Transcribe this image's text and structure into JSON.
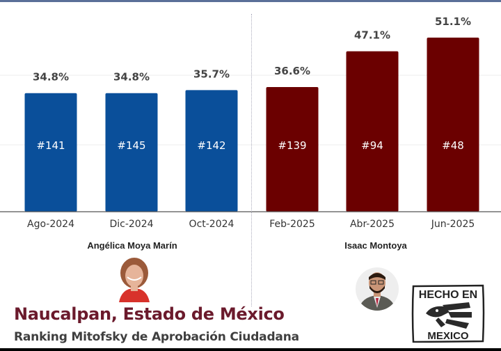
{
  "chart_data": {
    "type": "bar",
    "title": "Naucalpan, Estado de México",
    "subtitle": "Ranking Mitofsky de Aprobación Ciudadana",
    "xlabel": "",
    "ylabel": "",
    "ylim": [
      0,
      55
    ],
    "grid": true,
    "categories": [
      "Ago-2024",
      "Dic-2024",
      "Oct-2024",
      "Feb-2025",
      "Abr-2025",
      "Jun-2025"
    ],
    "values": [
      34.8,
      34.8,
      35.7,
      36.6,
      47.1,
      51.1
    ],
    "value_labels": [
      "34.8%",
      "34.8%",
      "35.7%",
      "36.6%",
      "47.1%",
      "51.1%"
    ],
    "rank_labels": [
      "#141",
      "#145",
      "#142",
      "#139",
      "#94",
      "#48"
    ],
    "groups": [
      {
        "name": "Angélica Moya Marín",
        "indices": [
          0,
          1,
          2
        ],
        "color": "#0a4f9a"
      },
      {
        "name": "Isaac Montoya",
        "indices": [
          3,
          4,
          5
        ],
        "color": "#6b0000"
      }
    ]
  },
  "candidates": {
    "left": {
      "name": "Angélica Moya Marín"
    },
    "right": {
      "name": "Isaac Montoya"
    }
  },
  "footer": {
    "title": "Naucalpan, Estado de México",
    "subtitle": "Ranking Mitofsky de Aprobación Ciudadana"
  },
  "logo": {
    "line1": "HECHO EN",
    "line2": "MEXICO",
    "icon": "eagle-icon"
  }
}
